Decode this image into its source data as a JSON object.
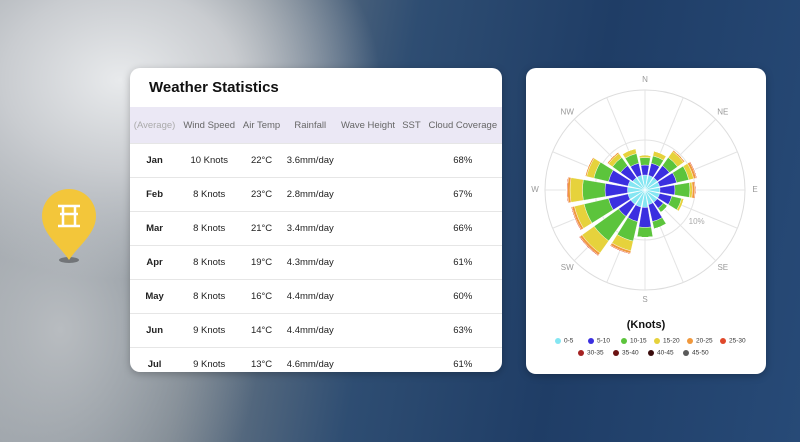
{
  "table": {
    "title": "Weather Statistics",
    "headers": [
      "(Average)",
      "Wind Speed",
      "Air Temp",
      "Rainfall",
      "Wave Height",
      "SST",
      "Cloud Coverage"
    ],
    "rows": [
      {
        "month": "Jan",
        "wind_speed": "10 Knots",
        "air_temp": "22°C",
        "rainfall": "3.6mm/day",
        "cloud_coverage": "68%"
      },
      {
        "month": "Feb",
        "wind_speed": "8 Knots",
        "air_temp": "23°C",
        "rainfall": "2.8mm/day",
        "cloud_coverage": "67%"
      },
      {
        "month": "Mar",
        "wind_speed": "8 Knots",
        "air_temp": "21°C",
        "rainfall": "3.4mm/day",
        "cloud_coverage": "66%"
      },
      {
        "month": "Apr",
        "wind_speed": "8 Knots",
        "air_temp": "19°C",
        "rainfall": "4.3mm/day",
        "cloud_coverage": "61%"
      },
      {
        "month": "May",
        "wind_speed": "8 Knots",
        "air_temp": "16°C",
        "rainfall": "4.4mm/day",
        "cloud_coverage": "60%"
      },
      {
        "month": "Jun",
        "wind_speed": "9 Knots",
        "air_temp": "14°C",
        "rainfall": "4.4mm/day",
        "cloud_coverage": "63%"
      },
      {
        "month": "Jul",
        "wind_speed": "9 Knots",
        "air_temp": "13°C",
        "rainfall": "4.6mm/day",
        "cloud_coverage": "61%"
      }
    ]
  },
  "chart_data": {
    "type": "wind_rose",
    "legend_title": "(Knots)",
    "categories": [
      "N",
      null,
      "NE",
      null,
      "E",
      null,
      "SE",
      null,
      "S",
      null,
      "SW",
      null,
      "W",
      null,
      "NW",
      null
    ],
    "rlim": [
      0,
      20
    ],
    "rticks": [
      {
        "value": 10,
        "label": "10%"
      }
    ],
    "series": [
      {
        "name": "0-5",
        "color": "#84e6f2",
        "values": [
          3,
          3,
          3,
          3,
          3,
          3,
          3,
          3,
          3.5,
          3.5,
          3.5,
          3.5,
          3.5,
          3.5,
          3,
          3
        ]
      },
      {
        "name": "5-10",
        "color": "#3b2fe0",
        "values": [
          2,
          2.5,
          3,
          3.5,
          3,
          2.5,
          1.5,
          3.5,
          4,
          3,
          3,
          4,
          4.5,
          4,
          3,
          2.5
        ]
      },
      {
        "name": "10-15",
        "color": "#5cc43c",
        "values": [
          1.5,
          1.5,
          2,
          2.5,
          3,
          2,
          1,
          1.5,
          2,
          4,
          6,
          5,
          4.5,
          3,
          2,
          2
        ]
      },
      {
        "name": "15-20",
        "color": "#e6d23c",
        "values": [
          0.5,
          1,
          1.5,
          1,
          0.5,
          0.5,
          0,
          0,
          0,
          2,
          3,
          2,
          2.5,
          1.5,
          1,
          1
        ]
      },
      {
        "name": "20-25",
        "color": "#f0983c",
        "values": [
          0,
          0,
          0.3,
          0.5,
          0.5,
          0,
          0,
          0,
          0,
          0.5,
          0.5,
          0.5,
          0.5,
          0.3,
          0.3,
          0
        ]
      },
      {
        "name": "25-30",
        "color": "#e0482a",
        "values": [
          0,
          0,
          0,
          0.2,
          0.2,
          0,
          0,
          0,
          0,
          0.2,
          0.2,
          0.2,
          0.2,
          0,
          0,
          0
        ]
      },
      {
        "name": "30-35",
        "color": "#a52222",
        "values": [
          0,
          0,
          0,
          0,
          0,
          0,
          0,
          0,
          0,
          0,
          0,
          0,
          0,
          0,
          0,
          0
        ]
      },
      {
        "name": "35-40",
        "color": "#6b1212",
        "values": [
          0,
          0,
          0,
          0,
          0,
          0,
          0,
          0,
          0,
          0,
          0,
          0,
          0,
          0,
          0,
          0
        ]
      },
      {
        "name": "40-45",
        "color": "#3a0c0c",
        "values": [
          0,
          0,
          0,
          0,
          0,
          0,
          0,
          0,
          0,
          0,
          0,
          0,
          0,
          0,
          0,
          0
        ]
      },
      {
        "name": "45-50",
        "color": "#5a5a5a",
        "values": [
          0,
          0,
          0,
          0,
          0,
          0,
          0,
          0,
          0,
          0,
          0,
          0,
          0,
          0,
          0,
          0
        ]
      }
    ]
  }
}
